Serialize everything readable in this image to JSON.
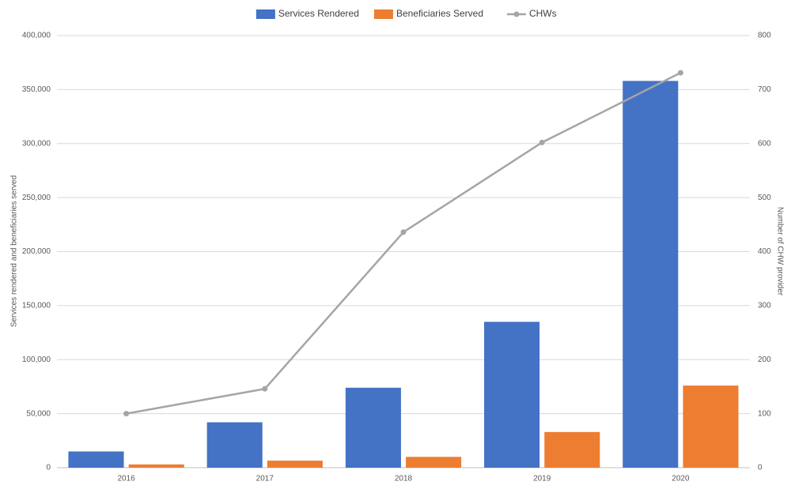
{
  "chart_data": {
    "type": "bar",
    "categories": [
      "2016",
      "2017",
      "2018",
      "2019",
      "2020"
    ],
    "series": [
      {
        "name": "Services Rendered",
        "color": "#4472c4",
        "values": [
          15000,
          42000,
          74000,
          135000,
          358000
        ]
      },
      {
        "name": "Beneficiaries Served",
        "color": "#ed7d31",
        "values": [
          3000,
          6500,
          10000,
          33000,
          76000
        ]
      },
      {
        "name": "CHWs",
        "color": "#a5a5a5",
        "type": "line",
        "axis": "y2",
        "values": [
          100,
          146,
          436,
          602,
          731
        ]
      }
    ],
    "ylabel": "Services rendered and beneficiaries served",
    "y2label": "Number of CHW provider",
    "ylim": [
      0,
      400000
    ],
    "yticks": [
      {
        "value": 0,
        "label": "0"
      },
      {
        "value": 50000,
        "label": "50,000"
      },
      {
        "value": 100000,
        "label": "100,000"
      },
      {
        "value": 150000,
        "label": "150,000"
      },
      {
        "value": 200000,
        "label": "200,000"
      },
      {
        "value": 250000,
        "label": "250,000"
      },
      {
        "value": 300000,
        "label": "300,000"
      },
      {
        "value": 350000,
        "label": "350,000"
      },
      {
        "value": 400000,
        "label": "400,000"
      }
    ],
    "y2lim": [
      0,
      800
    ],
    "y2ticks": [
      0,
      100,
      200,
      300,
      400,
      500,
      600,
      700,
      800
    ],
    "grid": true,
    "legend": "top"
  }
}
